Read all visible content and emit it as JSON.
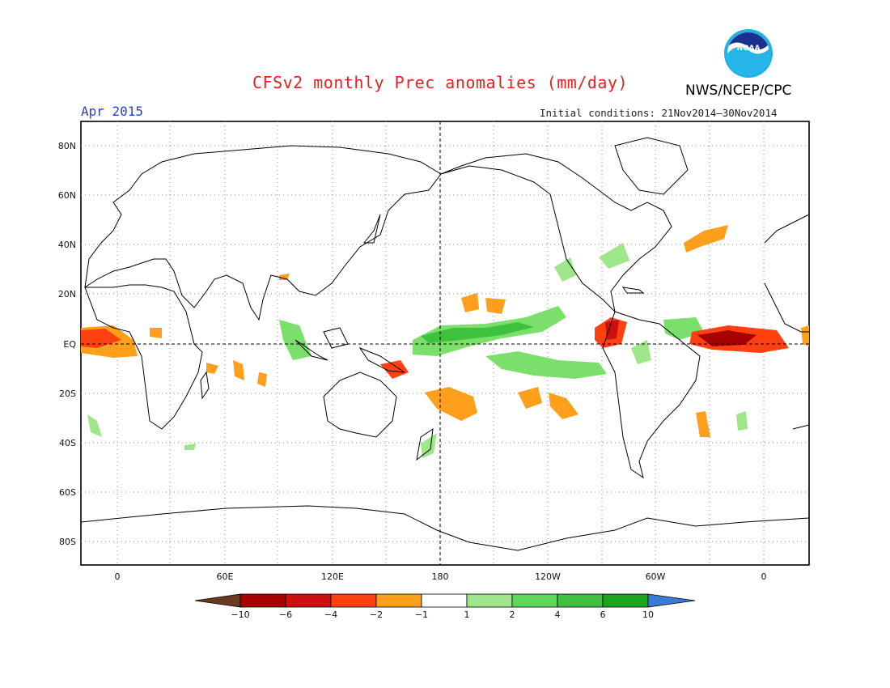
{
  "header": {
    "title": "CFSv2 monthly Prec anomalies (mm/day)",
    "agency": "NWS/NCEP/CPC",
    "month": "Apr 2015",
    "initial_conditions": "Initial conditions: 21Nov2014–30Nov2014",
    "logo_icon": "noaa-logo-icon",
    "logo_text": "NOAA"
  },
  "map": {
    "lat_labels": [
      "80N",
      "60N",
      "40N",
      "20N",
      "EQ",
      "20S",
      "40S",
      "60S",
      "80S"
    ],
    "lon_labels": [
      "0",
      "60E",
      "120E",
      "180",
      "120W",
      "60W",
      "0"
    ]
  },
  "legend": {
    "ticks": [
      "−10",
      "−6",
      "−4",
      "−2",
      "−1",
      "1",
      "2",
      "4",
      "6",
      "10"
    ],
    "colors": {
      "below_min": "#6b3a1f",
      "bins": [
        "#a80000",
        "#cc0f0f",
        "#ff4010",
        "#ff9f1c",
        "#ffffff",
        "#9ee68a",
        "#5ed95a",
        "#3ec23d",
        "#1aa51a"
      ],
      "above_max": "#3a7bd5"
    }
  }
}
